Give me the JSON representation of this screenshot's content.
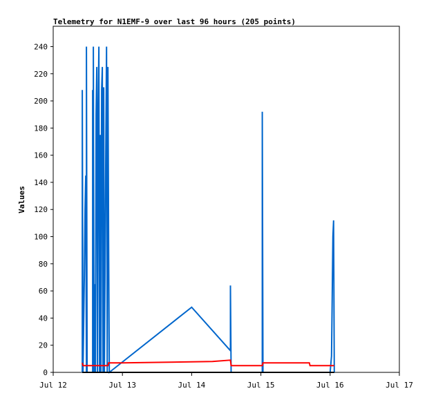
{
  "chart_data": {
    "type": "line",
    "title": "Telemetry for N1EMF-9 over last 96 hours (205 points)",
    "ylabel": "Values",
    "xlabel": "",
    "x_tick_labels": [
      "Jul 12",
      "Jul 13",
      "Jul 14",
      "Jul 15",
      "Jul 16",
      "Jul 17"
    ],
    "y_ticks": [
      0,
      20,
      40,
      60,
      80,
      100,
      120,
      140,
      160,
      180,
      200,
      220,
      240
    ],
    "xlim": [
      12.0,
      17.0
    ],
    "ylim": [
      0,
      255
    ],
    "grid": false,
    "series": [
      {
        "color": "#0066cc",
        "points": [
          [
            12.42,
            0
          ],
          [
            12.42,
            208
          ],
          [
            12.43,
            0
          ],
          [
            12.45,
            72
          ],
          [
            12.46,
            120
          ],
          [
            12.47,
            145
          ],
          [
            12.48,
            0
          ],
          [
            12.48,
            240
          ],
          [
            12.49,
            0
          ],
          [
            12.57,
            0
          ],
          [
            12.57,
            208
          ],
          [
            12.58,
            0
          ],
          [
            12.58,
            240
          ],
          [
            12.59,
            0
          ],
          [
            12.6,
            65
          ],
          [
            12.61,
            0
          ],
          [
            12.62,
            190
          ],
          [
            12.63,
            225
          ],
          [
            12.64,
            0
          ],
          [
            12.65,
            192
          ],
          [
            12.66,
            240
          ],
          [
            12.67,
            0
          ],
          [
            12.68,
            175
          ],
          [
            12.69,
            0
          ],
          [
            12.7,
            208
          ],
          [
            12.71,
            225
          ],
          [
            12.72,
            0
          ],
          [
            12.73,
            210
          ],
          [
            12.74,
            0
          ],
          [
            12.76,
            168
          ],
          [
            12.77,
            240
          ],
          [
            12.78,
            0
          ],
          [
            12.79,
            225
          ],
          [
            12.8,
            97
          ],
          [
            12.81,
            0
          ],
          [
            14.0,
            48
          ],
          [
            14.56,
            16
          ],
          [
            14.56,
            64
          ],
          [
            14.57,
            0
          ],
          [
            15.02,
            0
          ],
          [
            15.02,
            192
          ],
          [
            15.03,
            0
          ],
          [
            16.0,
            0
          ],
          [
            16.02,
            12
          ],
          [
            16.03,
            55
          ],
          [
            16.04,
            100
          ],
          [
            16.05,
            112
          ],
          [
            16.06,
            0
          ]
        ]
      },
      {
        "color": "#ff0000",
        "points": [
          [
            12.42,
            7
          ],
          [
            12.43,
            5
          ],
          [
            12.79,
            5
          ],
          [
            12.8,
            7
          ],
          [
            13.0,
            7
          ],
          [
            14.3,
            8
          ],
          [
            14.56,
            9
          ],
          [
            14.57,
            5
          ],
          [
            15.02,
            5
          ],
          [
            15.03,
            7
          ],
          [
            15.7,
            7
          ],
          [
            15.71,
            5
          ],
          [
            16.06,
            5
          ]
        ]
      },
      {
        "color": "#000000",
        "points": [
          [
            12.42,
            0
          ],
          [
            16.06,
            0
          ]
        ]
      }
    ]
  }
}
